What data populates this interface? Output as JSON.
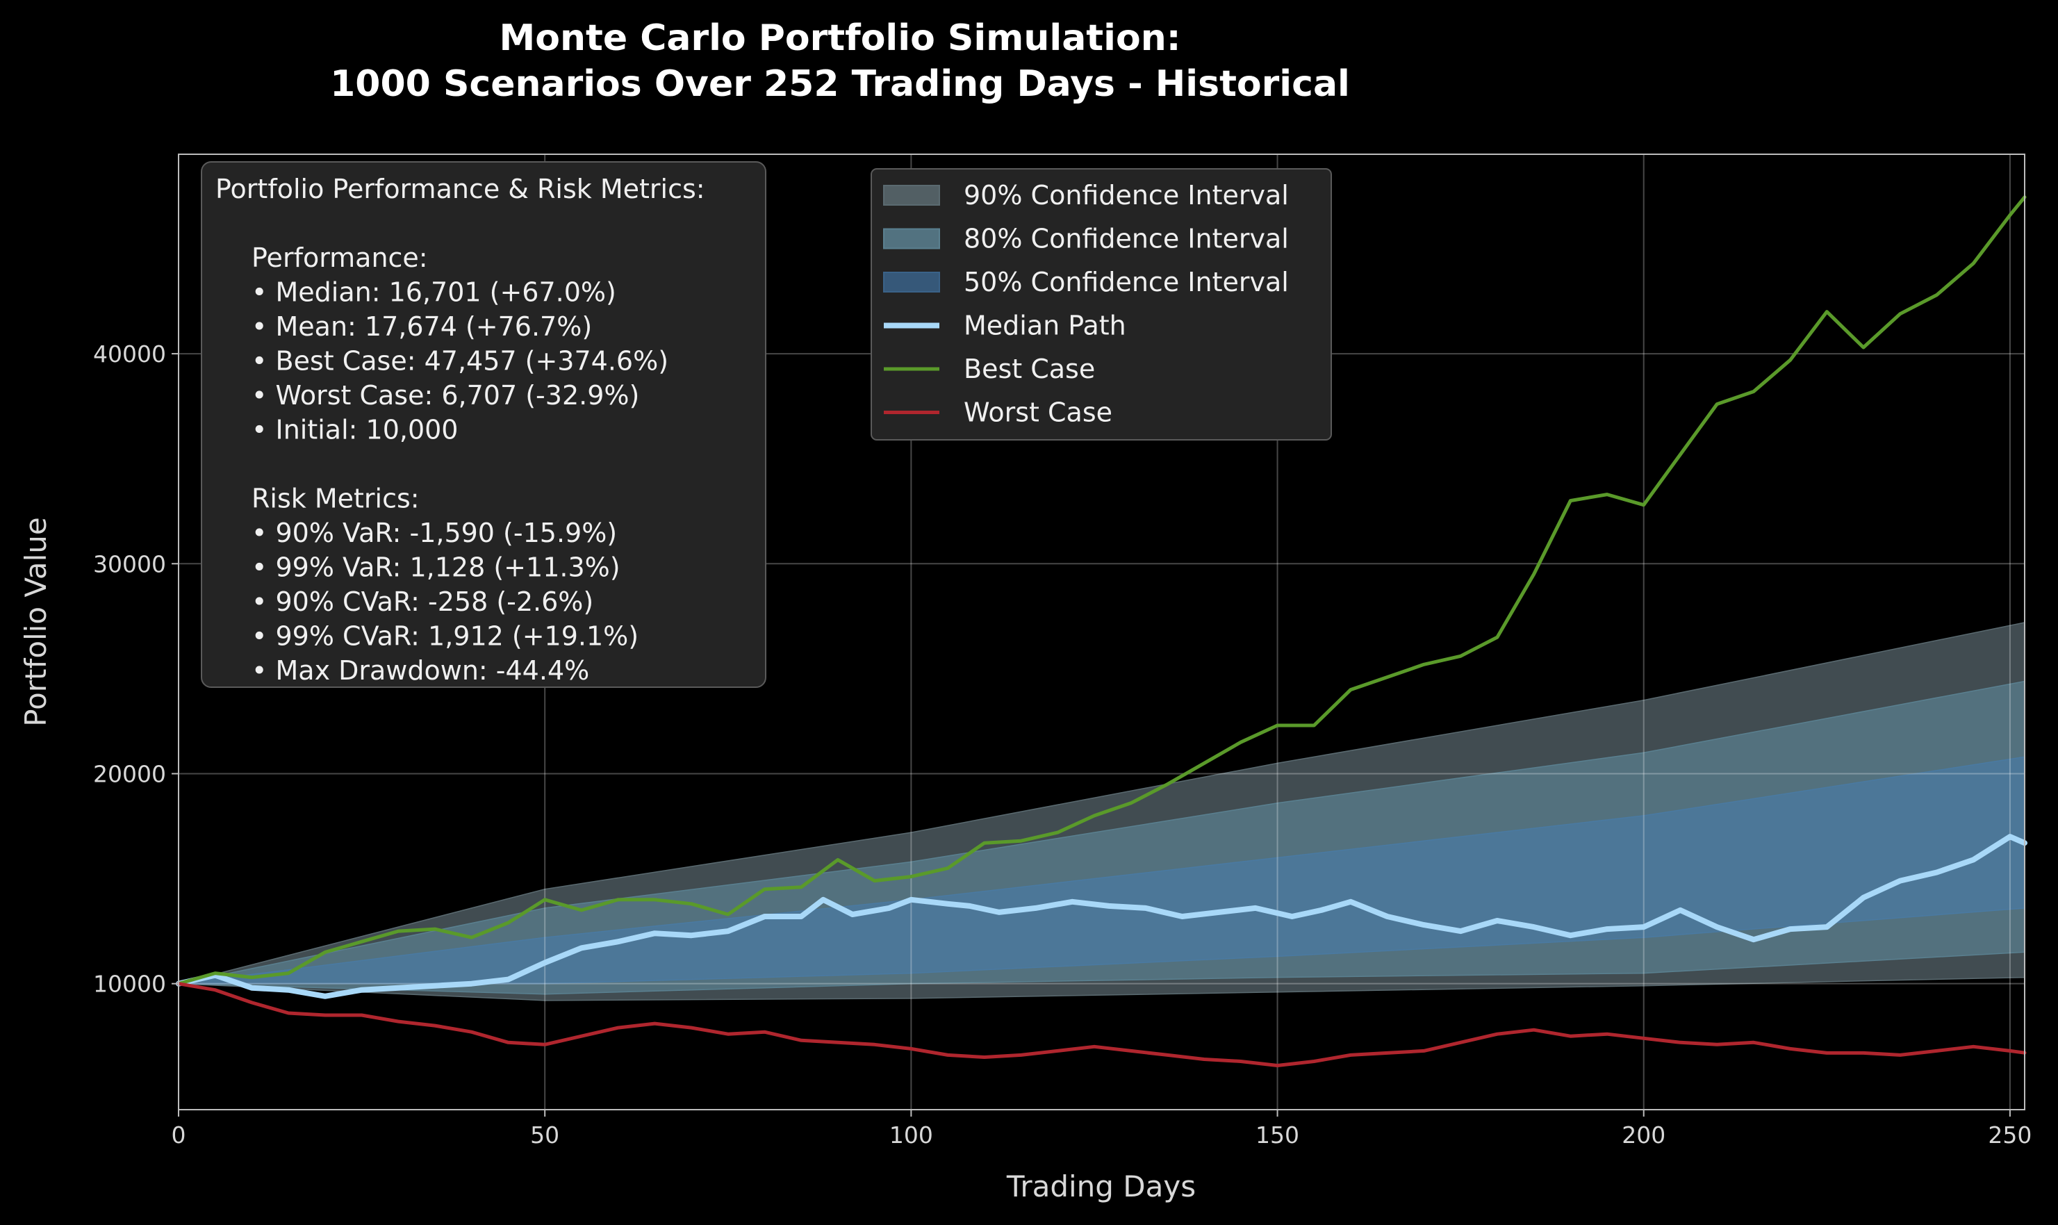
{
  "chart_data": {
    "type": "line",
    "title_lines": [
      "Monte Carlo Portfolio Simulation:",
      "1000 Scenarios Over 252 Trading Days - Historical"
    ],
    "xlabel": "Trading Days",
    "ylabel": "Portfolio Value",
    "xlim": [
      0,
      252
    ],
    "ylim": [
      4000,
      49500
    ],
    "xticks": [
      0,
      50,
      100,
      150,
      200,
      250
    ],
    "yticks": [
      10000,
      20000,
      30000,
      40000
    ],
    "grid": true,
    "legend_position": "upper-center",
    "series": [
      {
        "name": "Median Path",
        "color": "#a8d8f8",
        "x": [
          0,
          5,
          10,
          15,
          20,
          25,
          30,
          35,
          40,
          45,
          50,
          55,
          60,
          65,
          70,
          75,
          80,
          85,
          88,
          92,
          97,
          100,
          105,
          108,
          112,
          117,
          122,
          127,
          132,
          137,
          142,
          147,
          152,
          156,
          160,
          165,
          170,
          175,
          180,
          185,
          190,
          195,
          200,
          205,
          210,
          215,
          220,
          225,
          230,
          235,
          240,
          245,
          250,
          252
        ],
        "y": [
          10000,
          10400,
          9800,
          9700,
          9400,
          9700,
          9800,
          9900,
          10000,
          10200,
          11000,
          11700,
          12000,
          12400,
          12300,
          12500,
          13200,
          13200,
          14000,
          13300,
          13600,
          14000,
          13800,
          13700,
          13400,
          13600,
          13900,
          13700,
          13600,
          13200,
          13400,
          13600,
          13200,
          13500,
          13900,
          13200,
          12800,
          12500,
          13000,
          12700,
          12300,
          12600,
          12700,
          13500,
          12700,
          12100,
          12600,
          12700,
          14100,
          14900,
          15300,
          15900,
          17000,
          16700
        ]
      },
      {
        "name": "Best Case",
        "color": "#5a9a2a",
        "x": [
          0,
          5,
          10,
          15,
          20,
          25,
          30,
          35,
          40,
          45,
          50,
          55,
          60,
          65,
          70,
          75,
          80,
          85,
          90,
          95,
          100,
          105,
          110,
          115,
          120,
          125,
          130,
          135,
          140,
          145,
          150,
          155,
          160,
          165,
          170,
          175,
          180,
          185,
          190,
          195,
          200,
          205,
          210,
          215,
          220,
          225,
          230,
          235,
          240,
          245,
          250,
          252
        ],
        "y": [
          10000,
          10500,
          10300,
          10500,
          11500,
          12000,
          12500,
          12600,
          12200,
          12900,
          14000,
          13500,
          14000,
          14000,
          13800,
          13300,
          14500,
          14600,
          15900,
          14900,
          15100,
          15500,
          16700,
          16800,
          17200,
          18000,
          18600,
          19500,
          20500,
          21500,
          22300,
          22300,
          24000,
          24600,
          25200,
          25600,
          26500,
          29500,
          33000,
          33300,
          32800,
          35200,
          37600,
          38200,
          39700,
          42000,
          40300,
          41900,
          42800,
          44300,
          46600,
          47457
        ]
      },
      {
        "name": "Worst Case",
        "color": "#b0262e",
        "x": [
          0,
          5,
          10,
          15,
          20,
          25,
          30,
          35,
          40,
          45,
          50,
          55,
          60,
          65,
          70,
          75,
          80,
          85,
          90,
          95,
          100,
          105,
          110,
          115,
          120,
          125,
          130,
          135,
          140,
          145,
          150,
          155,
          160,
          165,
          170,
          175,
          180,
          185,
          190,
          195,
          200,
          205,
          210,
          215,
          220,
          225,
          230,
          235,
          240,
          245,
          250,
          252
        ],
        "y": [
          10000,
          9700,
          9100,
          8600,
          8500,
          8500,
          8200,
          8000,
          7700,
          7200,
          7100,
          7500,
          7900,
          8100,
          7900,
          7600,
          7700,
          7300,
          7200,
          7100,
          6900,
          6600,
          6500,
          6600,
          6800,
          7000,
          6800,
          6600,
          6400,
          6300,
          6100,
          6300,
          6600,
          6700,
          6800,
          7200,
          7600,
          7800,
          7500,
          7600,
          7400,
          7200,
          7100,
          7200,
          6900,
          6700,
          6700,
          6600,
          6800,
          7000,
          6800,
          6707
        ]
      }
    ],
    "bands": [
      {
        "name": "90% Confidence Interval",
        "color": "#5a6a70",
        "x": [
          0,
          50,
          100,
          150,
          200,
          252
        ],
        "low": [
          10000,
          9200,
          9300,
          9600,
          9900,
          10300
        ],
        "high": [
          10000,
          14500,
          17200,
          20500,
          23500,
          27200
        ]
      },
      {
        "name": "80% Confidence Interval",
        "color": "#5a8090",
        "x": [
          0,
          50,
          100,
          150,
          200,
          252
        ],
        "low": [
          10000,
          9500,
          10000,
          10300,
          10500,
          11500
        ],
        "high": [
          10000,
          13600,
          15800,
          18600,
          21000,
          24400
        ]
      },
      {
        "name": "50% Confidence Interval",
        "color": "#4a7aa2",
        "x": [
          0,
          50,
          100,
          150,
          200,
          252
        ],
        "low": [
          10000,
          10000,
          10500,
          11300,
          12200,
          13600
        ],
        "high": [
          10000,
          12200,
          14000,
          16000,
          18000,
          20800
        ]
      }
    ]
  },
  "legend": {
    "items": [
      {
        "label": "90% Confidence Interval",
        "kind": "patch",
        "color": "#5a6a70"
      },
      {
        "label": "80% Confidence Interval",
        "kind": "patch",
        "color": "#5a8090"
      },
      {
        "label": "50% Confidence Interval",
        "kind": "patch",
        "color": "#3a6288"
      },
      {
        "label": "Median Path",
        "kind": "line",
        "color": "#a8d8f8"
      },
      {
        "label": "Best Case",
        "kind": "line",
        "color": "#5a9a2a"
      },
      {
        "label": "Worst Case",
        "kind": "line",
        "color": "#b0262e"
      }
    ]
  },
  "metrics_box": {
    "lines": [
      "Portfolio Performance & Risk Metrics:",
      "",
      "Performance:",
      "• Median: 16,701 (+67.0%)",
      "• Mean: 17,674 (+76.7%)",
      "• Best Case: 47,457 (+374.6%)",
      "• Worst Case: 6,707 (-32.9%)",
      "• Initial: 10,000",
      "",
      "Risk Metrics:",
      "• 90% VaR: -1,590 (-15.9%)",
      "• 99% VaR: 1,128 (+11.3%)",
      "• 90% CVaR: -258 (-2.6%)",
      "• 99% CVaR: 1,912 (+19.1%)",
      "• Max Drawdown: -44.4%"
    ]
  }
}
